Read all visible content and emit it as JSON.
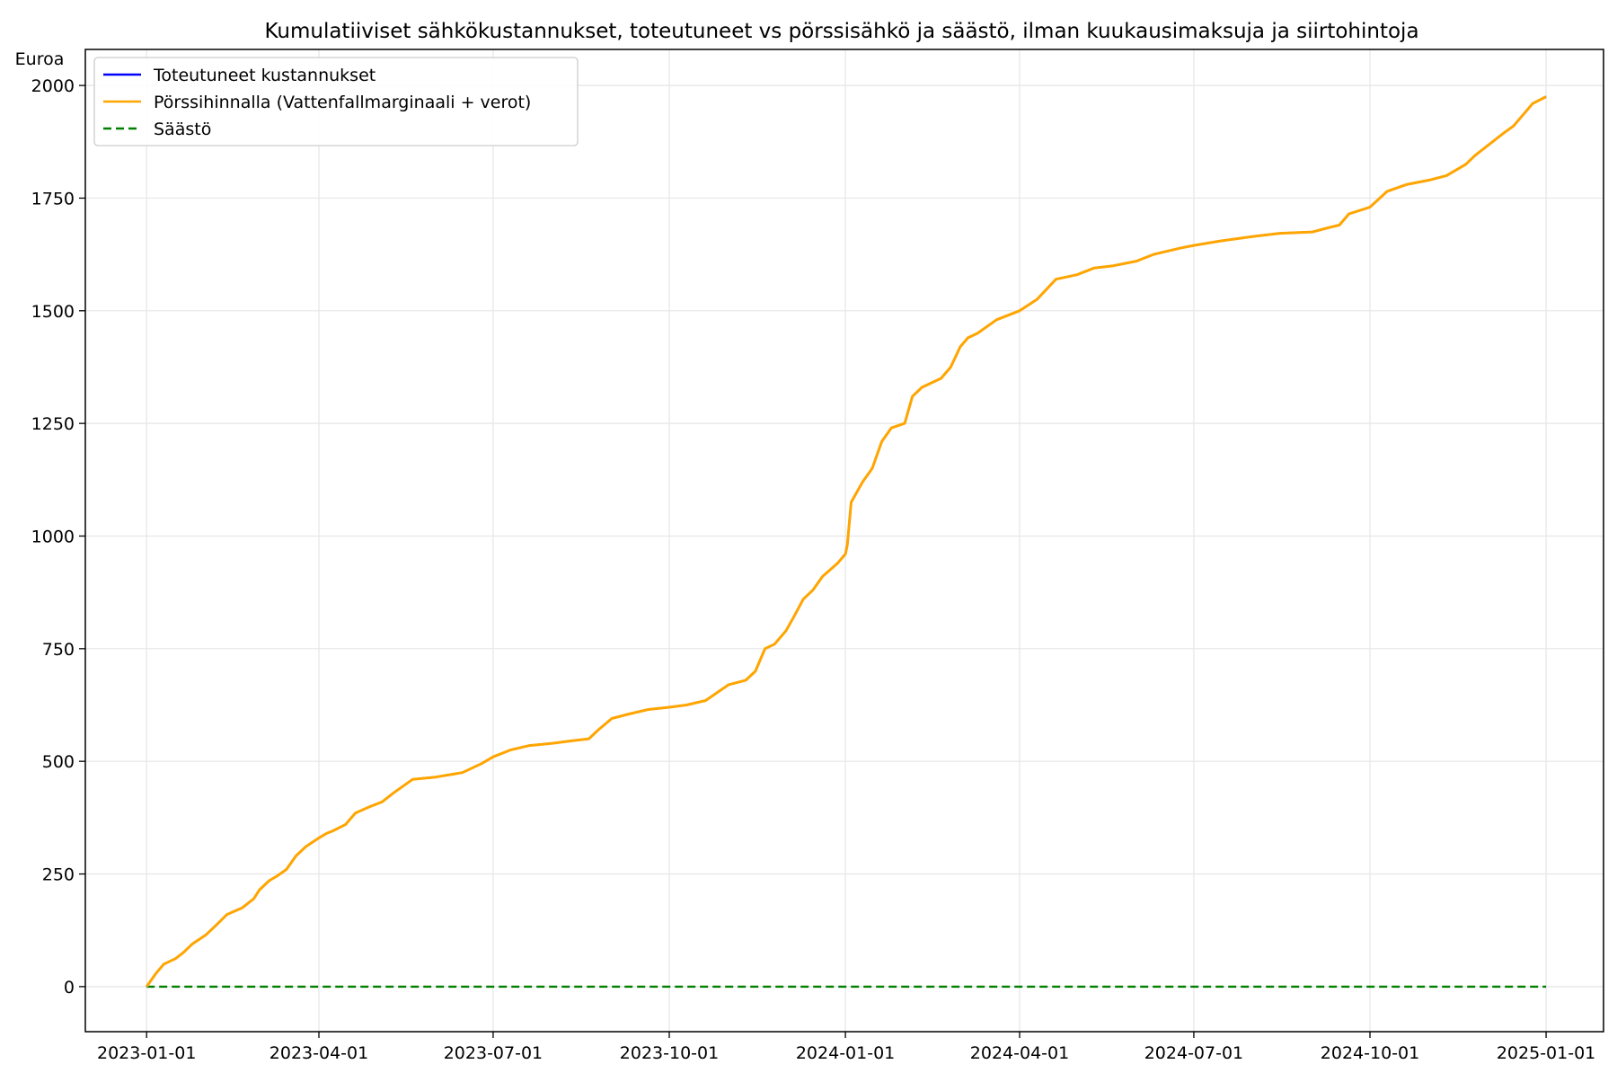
{
  "chart_data": {
    "type": "line",
    "title": "Kumulatiiviset sähkökustannukset, toteutuneet vs pörssisähkö ja säästö, ilman kuukausimaksuja ja siirtohintoja",
    "ylabel": "Euroa",
    "xlabel": "",
    "x_range": [
      "2022-11-30",
      "2025-01-31"
    ],
    "ylim": [
      -100,
      2080
    ],
    "x_ticks": [
      "2023-01-01",
      "2023-04-01",
      "2023-07-01",
      "2023-10-01",
      "2024-01-01",
      "2024-04-01",
      "2024-07-01",
      "2024-10-01",
      "2025-01-01"
    ],
    "y_ticks": [
      0,
      250,
      500,
      750,
      1000,
      1250,
      1500,
      1750,
      2000
    ],
    "grid": true,
    "legend_position": "upper-left",
    "series": [
      {
        "name": "Toteutuneet kustannukset",
        "color": "#0000ff",
        "style": "solid",
        "x": [
          "2023-01-01",
          "2023-01-06",
          "2023-01-10",
          "2023-01-16",
          "2023-01-20",
          "2023-01-25",
          "2023-02-01",
          "2023-02-06",
          "2023-02-12",
          "2023-02-20",
          "2023-02-26",
          "2023-03-01",
          "2023-03-06",
          "2023-03-10",
          "2023-03-15",
          "2023-03-20",
          "2023-03-25",
          "2023-04-01",
          "2023-04-05",
          "2023-04-08",
          "2023-04-15",
          "2023-04-20",
          "2023-04-28",
          "2023-05-04",
          "2023-05-10",
          "2023-05-20",
          "2023-06-01",
          "2023-06-15",
          "2023-06-25",
          "2023-07-01",
          "2023-07-10",
          "2023-07-20",
          "2023-08-01",
          "2023-08-10",
          "2023-08-20",
          "2023-08-25",
          "2023-09-01",
          "2023-09-10",
          "2023-09-20",
          "2023-10-01",
          "2023-10-10",
          "2023-10-20",
          "2023-11-01",
          "2023-11-10",
          "2023-11-15",
          "2023-11-18",
          "2023-11-20",
          "2023-11-25",
          "2023-12-01",
          "2023-12-05",
          "2023-12-10",
          "2023-12-15",
          "2023-12-20",
          "2023-12-28",
          "2024-01-01",
          "2024-01-02",
          "2024-01-04",
          "2024-01-10",
          "2024-01-15",
          "2024-01-20",
          "2024-01-25",
          "2024-02-01",
          "2024-02-05",
          "2024-02-10",
          "2024-02-20",
          "2024-02-25",
          "2024-03-01",
          "2024-03-05",
          "2024-03-10",
          "2024-03-20",
          "2024-04-01",
          "2024-04-10",
          "2024-04-20",
          "2024-05-01",
          "2024-05-10",
          "2024-05-20",
          "2024-06-01",
          "2024-06-10",
          "2024-06-20",
          "2024-06-25",
          "2024-07-01",
          "2024-07-15",
          "2024-08-01",
          "2024-08-15",
          "2024-09-01",
          "2024-09-10",
          "2024-09-15",
          "2024-09-20",
          "2024-10-01",
          "2024-10-10",
          "2024-10-20",
          "2024-11-01",
          "2024-11-10",
          "2024-11-20",
          "2024-11-25",
          "2024-12-01",
          "2024-12-10",
          "2024-12-15",
          "2024-12-20",
          "2024-12-25",
          "2025-01-01"
        ],
        "y": [
          0,
          30,
          50,
          62,
          75,
          95,
          115,
          135,
          160,
          175,
          195,
          215,
          235,
          245,
          260,
          290,
          310,
          330,
          340,
          345,
          360,
          385,
          400,
          410,
          430,
          460,
          465,
          475,
          495,
          510,
          525,
          535,
          540,
          545,
          550,
          570,
          595,
          605,
          615,
          620,
          625,
          635,
          670,
          680,
          700,
          730,
          750,
          760,
          790,
          820,
          860,
          880,
          910,
          940,
          960,
          980,
          1075,
          1120,
          1150,
          1210,
          1240,
          1250,
          1310,
          1330,
          1350,
          1375,
          1420,
          1440,
          1450,
          1480,
          1500,
          1525,
          1570,
          1580,
          1595,
          1600,
          1610,
          1625,
          1635,
          1640,
          1645,
          1655,
          1665,
          1672,
          1675,
          1685,
          1690,
          1715,
          1730,
          1765,
          1780,
          1790,
          1800,
          1825,
          1845,
          1865,
          1895,
          1910,
          1935,
          1960,
          1975
        ]
      },
      {
        "name": "Pörssihinnalla (Vattenfallmarginaali + verot)",
        "color": "#ffa500",
        "style": "solid",
        "x": [
          "2023-01-01",
          "2023-01-06",
          "2023-01-10",
          "2023-01-16",
          "2023-01-20",
          "2023-01-25",
          "2023-02-01",
          "2023-02-06",
          "2023-02-12",
          "2023-02-20",
          "2023-02-26",
          "2023-03-01",
          "2023-03-06",
          "2023-03-10",
          "2023-03-15",
          "2023-03-20",
          "2023-03-25",
          "2023-04-01",
          "2023-04-05",
          "2023-04-08",
          "2023-04-15",
          "2023-04-20",
          "2023-04-28",
          "2023-05-04",
          "2023-05-10",
          "2023-05-20",
          "2023-06-01",
          "2023-06-15",
          "2023-06-25",
          "2023-07-01",
          "2023-07-10",
          "2023-07-20",
          "2023-08-01",
          "2023-08-10",
          "2023-08-20",
          "2023-08-25",
          "2023-09-01",
          "2023-09-10",
          "2023-09-20",
          "2023-10-01",
          "2023-10-10",
          "2023-10-20",
          "2023-11-01",
          "2023-11-10",
          "2023-11-15",
          "2023-11-18",
          "2023-11-20",
          "2023-11-25",
          "2023-12-01",
          "2023-12-05",
          "2023-12-10",
          "2023-12-15",
          "2023-12-20",
          "2023-12-28",
          "2024-01-01",
          "2024-01-02",
          "2024-01-04",
          "2024-01-10",
          "2024-01-15",
          "2024-01-20",
          "2024-01-25",
          "2024-02-01",
          "2024-02-05",
          "2024-02-10",
          "2024-02-20",
          "2024-02-25",
          "2024-03-01",
          "2024-03-05",
          "2024-03-10",
          "2024-03-20",
          "2024-04-01",
          "2024-04-10",
          "2024-04-20",
          "2024-05-01",
          "2024-05-10",
          "2024-05-20",
          "2024-06-01",
          "2024-06-10",
          "2024-06-20",
          "2024-06-25",
          "2024-07-01",
          "2024-07-15",
          "2024-08-01",
          "2024-08-15",
          "2024-09-01",
          "2024-09-10",
          "2024-09-15",
          "2024-09-20",
          "2024-10-01",
          "2024-10-10",
          "2024-10-20",
          "2024-11-01",
          "2024-11-10",
          "2024-11-20",
          "2024-11-25",
          "2024-12-01",
          "2024-12-10",
          "2024-12-15",
          "2024-12-20",
          "2024-12-25",
          "2025-01-01"
        ],
        "y": [
          0,
          30,
          50,
          62,
          75,
          95,
          115,
          135,
          160,
          175,
          195,
          215,
          235,
          245,
          260,
          290,
          310,
          330,
          340,
          345,
          360,
          385,
          400,
          410,
          430,
          460,
          465,
          475,
          495,
          510,
          525,
          535,
          540,
          545,
          550,
          570,
          595,
          605,
          615,
          620,
          625,
          635,
          670,
          680,
          700,
          730,
          750,
          760,
          790,
          820,
          860,
          880,
          910,
          940,
          960,
          980,
          1075,
          1120,
          1150,
          1210,
          1240,
          1250,
          1310,
          1330,
          1350,
          1375,
          1420,
          1440,
          1450,
          1480,
          1500,
          1525,
          1570,
          1580,
          1595,
          1600,
          1610,
          1625,
          1635,
          1640,
          1645,
          1655,
          1665,
          1672,
          1675,
          1685,
          1690,
          1715,
          1730,
          1765,
          1780,
          1790,
          1800,
          1825,
          1845,
          1865,
          1895,
          1910,
          1935,
          1960,
          1975
        ]
      },
      {
        "name": "Säästö",
        "color": "#008000",
        "style": "dashed",
        "x": [
          "2023-01-01",
          "2025-01-01"
        ],
        "y": [
          0,
          0
        ]
      }
    ]
  }
}
